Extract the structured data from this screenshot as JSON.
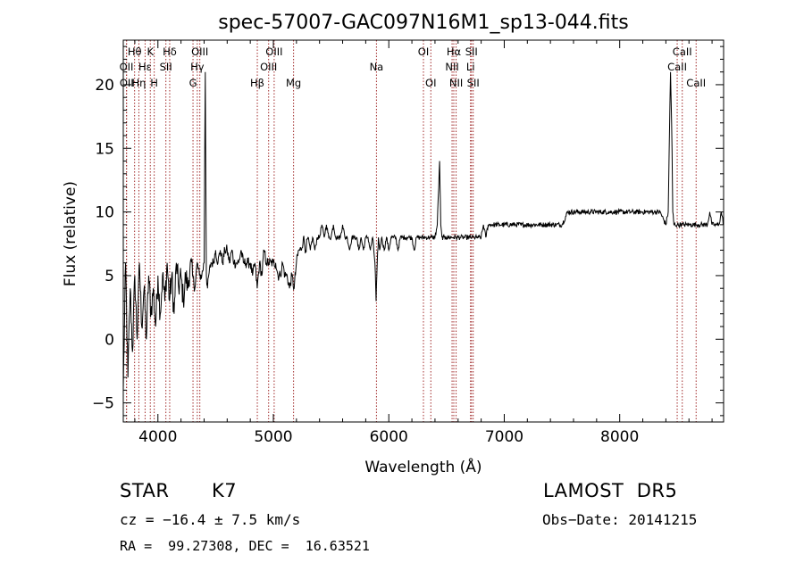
{
  "chart_data": {
    "type": "line",
    "title": "spec-57007-GAC097N16M1_sp13-044.fits",
    "xlabel": "Wavelength (Å)",
    "ylabel": "Flux (relative)",
    "xlim": [
      3700,
      8900
    ],
    "ylim": [
      -6.5,
      23.5
    ],
    "xticks": [
      4000,
      5000,
      6000,
      7000,
      8000
    ],
    "yticks": [
      -5,
      0,
      5,
      10,
      15,
      20
    ],
    "xtick_labels": [
      "4000",
      "5000",
      "6000",
      "7000",
      "8000"
    ],
    "ytick_labels": [
      "−5",
      "0",
      "5",
      "10",
      "15",
      "20"
    ],
    "grid": false,
    "lines": [
      {
        "label": "Hθ",
        "x": 3798,
        "row": 0
      },
      {
        "label": "OII",
        "x": 3727,
        "row": 1
      },
      {
        "label": "OII",
        "x": 3729,
        "row": 2
      },
      {
        "label": "Hη",
        "x": 3835,
        "row": 2
      },
      {
        "label": "K",
        "x": 3934,
        "row": 0
      },
      {
        "label": "Hε",
        "x": 3889,
        "row": 1
      },
      {
        "label": "H",
        "x": 3968,
        "row": 2
      },
      {
        "label": "Hδ",
        "x": 4102,
        "row": 0
      },
      {
        "label": "SII",
        "x": 4069,
        "row": 1
      },
      {
        "label": "OIII",
        "x": 4363,
        "row": 0
      },
      {
        "label": "Hγ",
        "x": 4341,
        "row": 1
      },
      {
        "label": "G",
        "x": 4304,
        "row": 2
      },
      {
        "label": "Hβ",
        "x": 4861,
        "row": 2
      },
      {
        "label": "OIII",
        "x": 5007,
        "row": 0
      },
      {
        "label": "OIII",
        "x": 4959,
        "row": 1
      },
      {
        "label": "Mg",
        "x": 5175,
        "row": 2
      },
      {
        "label": "Na",
        "x": 5893,
        "row": 1
      },
      {
        "label": "OI",
        "x": 6300,
        "row": 0
      },
      {
        "label": "OI",
        "x": 6364,
        "row": 2
      },
      {
        "label": "Hα",
        "x": 6563,
        "row": 0
      },
      {
        "label": "NII",
        "x": 6548,
        "row": 1
      },
      {
        "label": "NII",
        "x": 6583,
        "row": 2
      },
      {
        "label": "SII",
        "x": 6716,
        "row": 0
      },
      {
        "label": "Li",
        "x": 6708,
        "row": 1
      },
      {
        "label": "SII",
        "x": 6731,
        "row": 2
      },
      {
        "label": "CaII",
        "x": 8542,
        "row": 0
      },
      {
        "label": "CaII",
        "x": 8498,
        "row": 1
      },
      {
        "label": "CaII",
        "x": 8662,
        "row": 2
      }
    ],
    "spectrum": {
      "x": [
        3700,
        3720,
        3740,
        3760,
        3780,
        3800,
        3820,
        3840,
        3860,
        3880,
        3900,
        3920,
        3940,
        3960,
        3980,
        4000,
        4020,
        4040,
        4060,
        4080,
        4100,
        4120,
        4140,
        4160,
        4180,
        4200,
        4220,
        4240,
        4260,
        4280,
        4300,
        4320,
        4340,
        4360,
        4380,
        4400,
        4410,
        4420,
        4430,
        4440,
        4460,
        4480,
        4500,
        4520,
        4540,
        4560,
        4580,
        4600,
        4620,
        4640,
        4660,
        4680,
        4700,
        4720,
        4740,
        4760,
        4780,
        4800,
        4820,
        4840,
        4860,
        4880,
        4900,
        4920,
        4940,
        4960,
        4980,
        5000,
        5020,
        5040,
        5060,
        5080,
        5100,
        5120,
        5140,
        5160,
        5180,
        5200,
        5220,
        5240,
        5260,
        5280,
        5300,
        5320,
        5340,
        5360,
        5380,
        5400,
        5420,
        5440,
        5460,
        5480,
        5500,
        5520,
        5540,
        5560,
        5580,
        5600,
        5620,
        5640,
        5660,
        5680,
        5700,
        5720,
        5740,
        5760,
        5780,
        5800,
        5820,
        5840,
        5860,
        5880,
        5890,
        5900,
        5910,
        5920,
        5940,
        5960,
        5980,
        6000,
        6020,
        6040,
        6060,
        6080,
        6100,
        6120,
        6140,
        6160,
        6180,
        6200,
        6220,
        6240,
        6260,
        6280,
        6300,
        6320,
        6340,
        6360,
        6380,
        6400,
        6420,
        6440,
        6450,
        6460,
        6470,
        6480,
        6490,
        6500,
        6520,
        6540,
        6560,
        6580,
        6600,
        6620,
        6640,
        6660,
        6680,
        6700,
        6720,
        6740,
        6760,
        6780,
        6800,
        6820,
        6840,
        6860,
        6880,
        6900,
        6920,
        6940,
        6960,
        6980,
        7000,
        7050,
        7100,
        7150,
        7200,
        7250,
        7300,
        7350,
        7400,
        7450,
        7500,
        7550,
        7600,
        7650,
        7700,
        7750,
        7800,
        7850,
        7900,
        7950,
        8000,
        8050,
        8100,
        8150,
        8200,
        8250,
        8300,
        8350,
        8400,
        8420,
        8440,
        8450,
        8460,
        8470,
        8480,
        8500,
        8520,
        8540,
        8560,
        8580,
        8600,
        8620,
        8640,
        8660,
        8680,
        8700,
        8720,
        8740,
        8760,
        8780,
        8800,
        8820,
        8840,
        8860,
        8880,
        8900
      ],
      "y": [
        -4,
        6,
        -3,
        4,
        -1,
        5,
        0,
        6,
        1,
        4,
        0,
        5,
        2,
        4,
        1,
        5,
        2,
        5,
        3,
        6,
        3,
        5,
        2,
        6,
        4,
        5,
        3,
        5,
        4,
        6,
        5,
        4,
        6,
        5,
        5,
        6,
        21,
        5,
        4,
        5,
        6,
        6,
        7,
        6,
        7,
        6,
        7,
        7,
        6,
        7,
        6,
        6,
        6,
        7,
        6,
        6,
        6,
        6,
        5,
        6,
        4,
        6,
        5,
        7,
        6,
        6,
        6,
        6,
        6,
        5,
        5,
        6,
        5,
        5,
        4,
        5,
        4,
        6,
        7,
        7,
        8,
        7,
        8,
        7,
        8,
        7,
        8,
        8,
        9,
        8,
        9,
        8,
        8,
        9,
        8,
        8,
        8,
        9,
        8,
        8,
        7,
        8,
        8,
        8,
        7,
        8,
        7,
        8,
        8,
        7,
        8,
        6,
        3,
        6,
        8,
        7,
        8,
        7,
        8,
        7,
        8,
        8,
        8,
        7,
        8,
        8,
        8,
        8,
        8,
        8,
        7,
        8,
        8,
        8,
        8,
        8,
        8,
        8,
        8,
        8,
        9,
        14,
        9,
        8,
        8,
        8,
        8,
        8,
        8,
        8,
        8,
        8,
        8,
        8,
        8,
        8,
        8,
        8,
        8,
        8,
        8,
        8,
        8,
        9,
        8,
        9,
        9,
        9,
        9,
        9,
        9,
        9,
        9,
        9,
        9,
        9,
        9,
        9,
        9,
        9,
        9,
        9,
        9,
        10,
        10,
        10,
        10,
        10,
        10,
        10,
        10,
        10,
        10,
        10,
        10,
        10,
        10,
        10,
        10,
        10,
        9,
        10,
        21,
        17,
        10,
        9,
        9,
        9,
        9,
        9,
        9,
        9,
        9,
        9,
        9,
        9,
        9,
        9,
        9,
        9,
        9,
        10,
        9,
        9,
        9,
        9,
        10,
        9
      ]
    }
  },
  "info": {
    "object_type": "STAR",
    "subclass": "K7",
    "survey": "LAMOST  DR5",
    "redshift": "cz = −16.4 ± 7.5 km/s",
    "obs_date": "Obs−Date: 20141215",
    "coords": "RA =  99.27308, DEC =  16.63521"
  }
}
